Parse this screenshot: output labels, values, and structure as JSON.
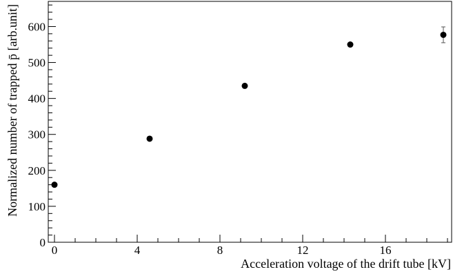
{
  "chart_data": {
    "type": "scatter",
    "xlabel": "Acceleration voltage of the drift tube [kV]",
    "ylabel": "Normalized number of trapped p̄ [arb.unit]",
    "xlim": [
      -0.3,
      19.2
    ],
    "ylim": [
      0,
      670
    ],
    "x_ticks": [
      "0",
      "4",
      "8",
      "12",
      "16"
    ],
    "y_ticks": [
      "0",
      "100",
      "200",
      "300",
      "400",
      "500",
      "600"
    ],
    "grid": false,
    "points": [
      {
        "x": 0.0,
        "y": 160,
        "yerr": 0
      },
      {
        "x": 4.6,
        "y": 288,
        "yerr": 0
      },
      {
        "x": 9.2,
        "y": 435,
        "yerr": 0
      },
      {
        "x": 14.3,
        "y": 550,
        "yerr": 0
      },
      {
        "x": 18.8,
        "y": 577,
        "yerr": 22
      }
    ],
    "marker_color": "#000000"
  }
}
